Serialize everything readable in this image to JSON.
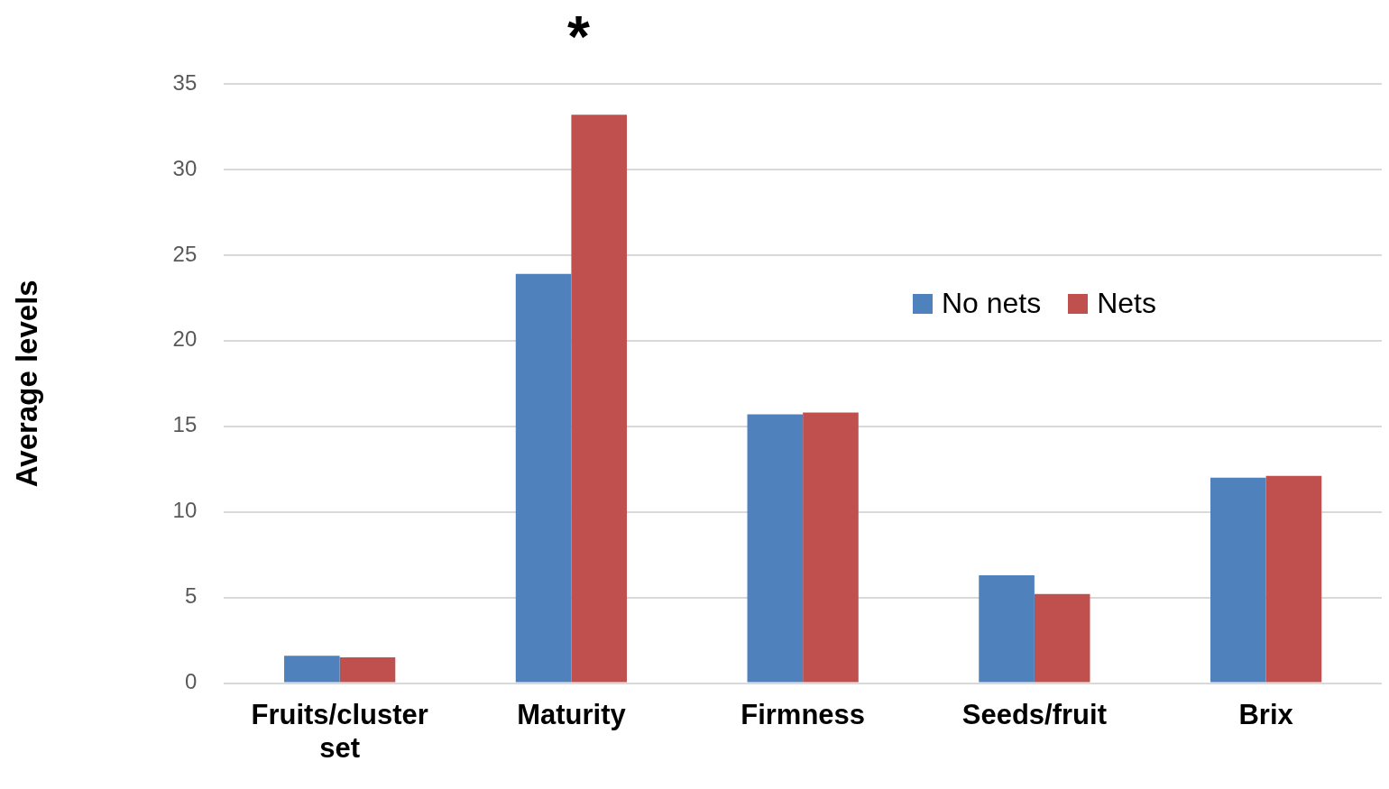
{
  "chart_data": {
    "type": "bar",
    "ylabel": "Average levels",
    "categories": [
      "Fruits/cluster set",
      "Maturity",
      "Firmness",
      "Seeds/fruit",
      "Brix"
    ],
    "series": [
      {
        "name": "No nets",
        "color": "#4f81bd",
        "values": [
          1.6,
          23.9,
          15.7,
          6.3,
          12.0
        ]
      },
      {
        "name": "Nets",
        "color": "#c0504d",
        "values": [
          1.5,
          33.2,
          15.8,
          5.2,
          12.1
        ]
      }
    ],
    "ylim": [
      0,
      35
    ],
    "yticks": [
      0,
      5,
      10,
      15,
      20,
      25,
      30,
      35
    ],
    "grid": "y",
    "legend": "top right",
    "annotations": [
      {
        "text": "*",
        "x": "Maturity",
        "y": 33.2
      }
    ]
  }
}
